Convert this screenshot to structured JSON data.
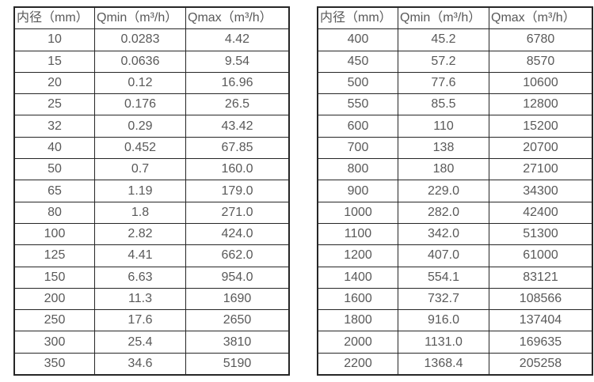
{
  "tables": [
    {
      "name": "flow-table-small-diameters",
      "headers": [
        "内径（mm）",
        "Qmin（m³/h）",
        "Qmax（m³/h）"
      ],
      "rows": [
        [
          "10",
          "0.0283",
          "4.42"
        ],
        [
          "15",
          "0.0636",
          "9.54"
        ],
        [
          "20",
          "0.12",
          "16.96"
        ],
        [
          "25",
          "0.176",
          "26.5"
        ],
        [
          "32",
          "0.29",
          "43.42"
        ],
        [
          "40",
          "0.452",
          "67.85"
        ],
        [
          "50",
          "0.7",
          "160.0"
        ],
        [
          "65",
          "1.19",
          "179.0"
        ],
        [
          "80",
          "1.8",
          "271.0"
        ],
        [
          "100",
          "2.82",
          "424.0"
        ],
        [
          "125",
          "4.41",
          "662.0"
        ],
        [
          "150",
          "6.63",
          "954.0"
        ],
        [
          "200",
          "11.3",
          "1690"
        ],
        [
          "250",
          "17.6",
          "2650"
        ],
        [
          "300",
          "25.4",
          "3810"
        ],
        [
          "350",
          "34.6",
          "5190"
        ]
      ]
    },
    {
      "name": "flow-table-large-diameters",
      "headers": [
        "内径（mm）",
        "Qmin（m³/h）",
        "Qmax（m³/h）"
      ],
      "rows": [
        [
          "400",
          "45.2",
          "6780"
        ],
        [
          "450",
          "57.2",
          "8570"
        ],
        [
          "500",
          "77.6",
          "10600"
        ],
        [
          "550",
          "85.5",
          "12800"
        ],
        [
          "600",
          "110",
          "15200"
        ],
        [
          "700",
          "138",
          "20700"
        ],
        [
          "800",
          "180",
          "27100"
        ],
        [
          "900",
          "229.0",
          "34300"
        ],
        [
          "1000",
          "282.0",
          "42400"
        ],
        [
          "1100",
          "342.0",
          "51300"
        ],
        [
          "1200",
          "407.0",
          "61000"
        ],
        [
          "1400",
          "554.1",
          "83121"
        ],
        [
          "1600",
          "732.7",
          "108566"
        ],
        [
          "1800",
          "916.0",
          "137404"
        ],
        [
          "2000",
          "1131.0",
          "169635"
        ],
        [
          "2200",
          "1368.4",
          "205258"
        ]
      ]
    }
  ],
  "colors": {
    "border": "#262626",
    "text": "#595959",
    "background": "#ffffff"
  }
}
